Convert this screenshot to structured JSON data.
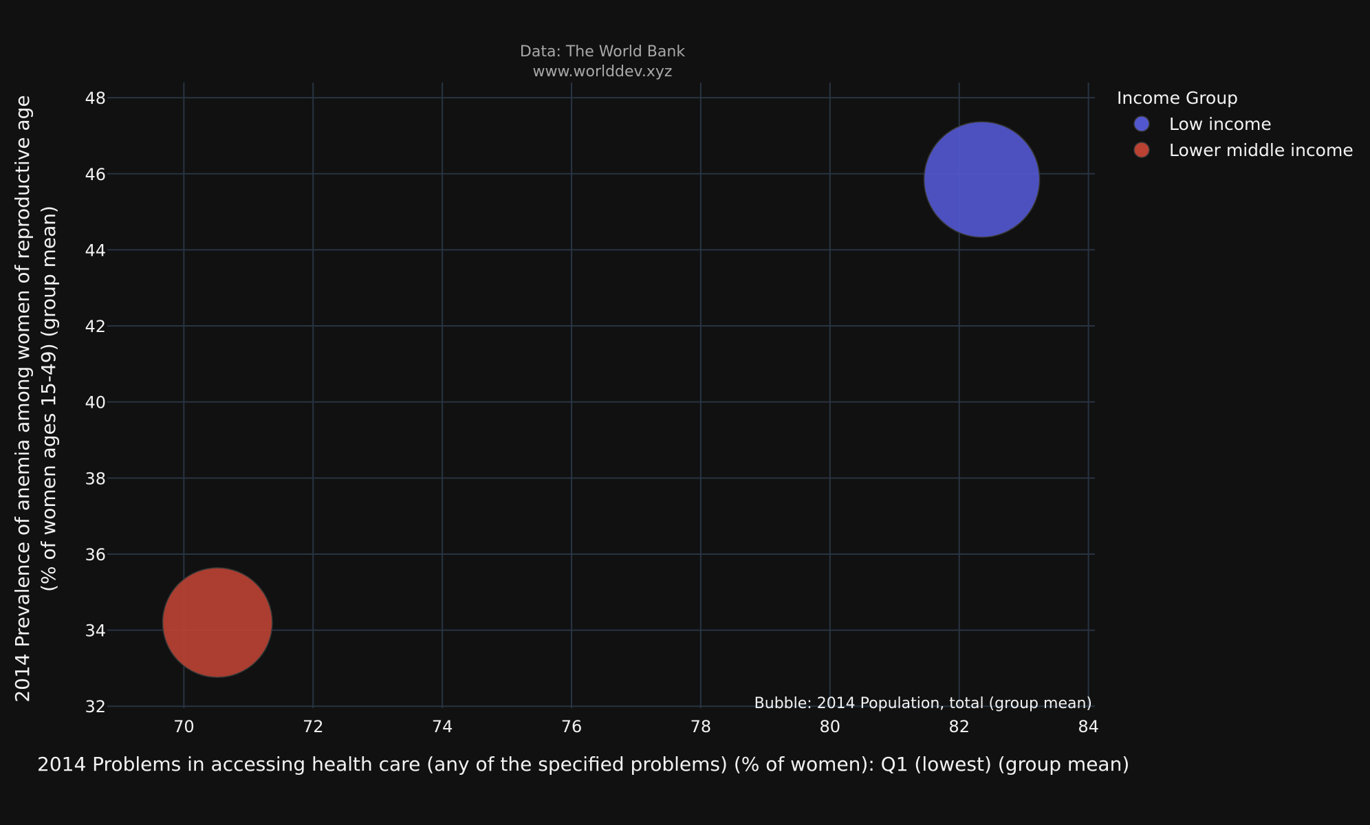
{
  "source": {
    "line1": "Data: The World Bank",
    "line2": "www.worlddev.xyz"
  },
  "bubble_note": "Bubble: 2014 Population, total (group mean)",
  "legend": {
    "title": "Income Group"
  },
  "colors": {
    "background": "#111111",
    "grid": "#283442",
    "text": "#f2f2f2",
    "source_text": "#a8a8a8",
    "low_income": "#5257cf",
    "lower_middle_income": "#b94233"
  },
  "chart_data": {
    "type": "scatter",
    "subtype": "bubble",
    "xlabel": "2014 Problems in accessing health care (any of the specified problems) (% of women): Q1 (lowest) (group mean)",
    "ylabel": [
      "2014 Prevalence of anemia among women of reproductive age",
      "(% of women ages 15-49) (group mean)"
    ],
    "xlim": [
      68.9,
      84.1
    ],
    "ylim": [
      31.95,
      48.4
    ],
    "x_ticks": [
      "70",
      "72",
      "74",
      "76",
      "78",
      "80",
      "82",
      "84"
    ],
    "y_ticks": [
      "32",
      "34",
      "36",
      "38",
      "40",
      "42",
      "44",
      "46",
      "48"
    ],
    "grid": true,
    "legend_position": "top-right outside plot",
    "series": [
      {
        "name": "Low income",
        "color": "#5257cf",
        "x": 82.35,
        "y": 45.85,
        "relative_size": 1.0
      },
      {
        "name": "Lower middle income",
        "color": "#b94233",
        "x": 70.52,
        "y": 34.2,
        "relative_size": 0.9
      }
    ]
  }
}
